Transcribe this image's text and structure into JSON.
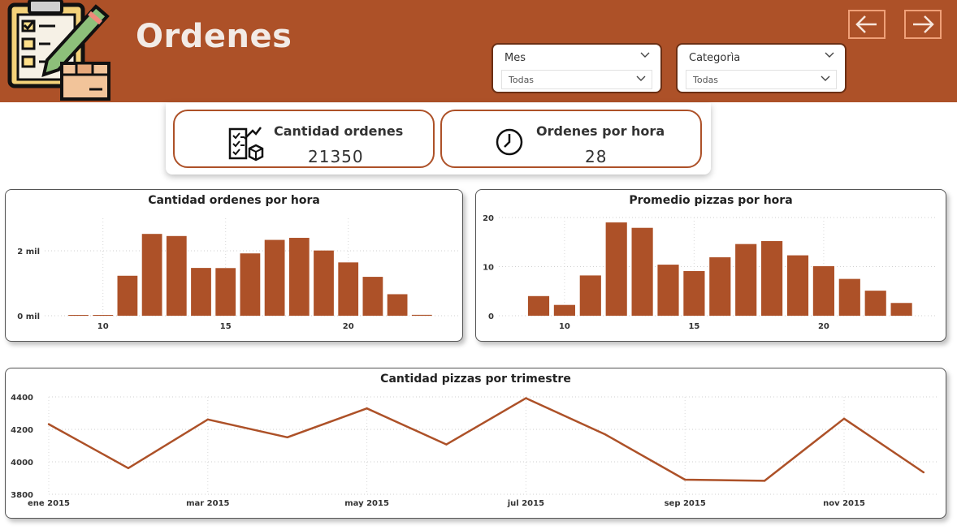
{
  "header": {
    "title": "Ordenes",
    "nav_back_icon": "arrow-left-icon",
    "nav_forward_icon": "arrow-right-icon",
    "logo_icon": "clipboard-checklist-pencil-box-icon"
  },
  "slicers": [
    {
      "label": "Mes",
      "value": "Todas"
    },
    {
      "label": "Categorìa",
      "value": "Todas"
    }
  ],
  "kpis": [
    {
      "title": "Cantidad ordenes",
      "value": "21350",
      "icon": "checklist-box-icon"
    },
    {
      "title": "Ordenes por hora",
      "value": "28",
      "icon": "clock-icon"
    }
  ],
  "colors": {
    "accent": "#ad5128",
    "header_text": "#f2ebe6"
  },
  "chart_data": [
    {
      "type": "bar",
      "title": "Cantidad ordenes por hora",
      "categories": [
        9,
        10,
        11,
        12,
        13,
        14,
        15,
        16,
        17,
        18,
        19,
        20,
        21,
        22,
        23
      ],
      "values": [
        8,
        20,
        1231,
        2520,
        2455,
        1472,
        1468,
        1920,
        2336,
        2399,
        2009,
        1642,
        1198,
        663,
        28
      ],
      "xticks": [
        10,
        15,
        20
      ],
      "yticks": [
        0,
        2000
      ],
      "ytick_labels": [
        "0 mil",
        "2 mil"
      ],
      "ylim": [
        0,
        3000
      ],
      "grid": true
    },
    {
      "type": "bar",
      "title": "Promedio pizzas por hora",
      "categories": [
        9,
        10,
        11,
        12,
        13,
        14,
        15,
        16,
        17,
        18,
        19,
        20,
        21,
        22,
        23
      ],
      "values": [
        4.0,
        2.2,
        8.2,
        19.0,
        17.9,
        10.4,
        9.1,
        11.9,
        14.6,
        15.2,
        12.3,
        10.1,
        7.5,
        5.1,
        2.6
      ],
      "xticks": [
        10,
        15,
        20
      ],
      "yticks": [
        0,
        10,
        20
      ],
      "ylim": [
        0,
        20
      ],
      "grid": true
    },
    {
      "type": "line",
      "title": "Cantidad pizzas por trimestre",
      "x": [
        "ene 2015",
        "feb 2015",
        "mar 2015",
        "abr 2015",
        "may 2015",
        "jun 2015",
        "jul 2015",
        "ago 2015",
        "sep 2015",
        "oct 2015",
        "nov 2015",
        "dic 2015"
      ],
      "xtick_labels": [
        "ene 2015",
        "mar 2015",
        "may 2015",
        "jul 2015",
        "sep 2015",
        "nov 2015"
      ],
      "values": [
        4232,
        3961,
        4261,
        4151,
        4329,
        4107,
        4392,
        4168,
        3890,
        3883,
        4266,
        3935
      ],
      "yticks": [
        3800,
        4000,
        4200,
        4400
      ],
      "ylim": [
        3800,
        4400
      ],
      "grid": true
    }
  ]
}
